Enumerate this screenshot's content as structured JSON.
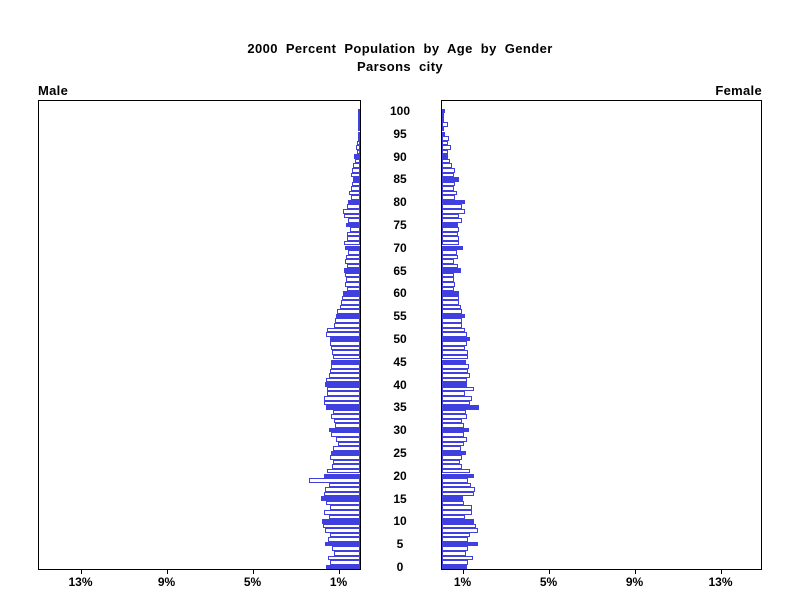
{
  "title": {
    "line1": "2000 Percent Population by Age by Gender",
    "line2": "Parsons city"
  },
  "side_labels": {
    "male": "Male",
    "female": "Female"
  },
  "axis": {
    "age_ticks": [
      0,
      5,
      10,
      15,
      20,
      25,
      30,
      35,
      40,
      45,
      50,
      55,
      60,
      65,
      70,
      75,
      80,
      85,
      90,
      95,
      100
    ],
    "pct_tick_values": [
      1,
      5,
      9,
      13
    ],
    "pct_tick_labels": [
      "1%",
      "5%",
      "9%",
      "13%"
    ]
  },
  "colors": {
    "bar_blue": "#4040E0",
    "bar_hollow_fill": "#FFFFFF",
    "frame": "#000000",
    "text": "#000000",
    "background": "#FFFFFF"
  },
  "chart_data": {
    "type": "bar",
    "subtype": "population_pyramid",
    "title": "2000 Percent Population by Age by Gender",
    "subtitle": "Parsons city",
    "unit": "percent",
    "age_min": 0,
    "age_max": 100,
    "bars_filled_at_multiples_of": 5,
    "x_axis": {
      "tick_values_pct": [
        1,
        5,
        9,
        13
      ],
      "side_max_pct": 15,
      "left_series": "Male",
      "right_series": "Female"
    },
    "series": [
      {
        "name": "Male",
        "side": "left",
        "ages_0_to_100_pct": [
          1.57,
          1.38,
          1.51,
          1.23,
          1.3,
          1.63,
          1.51,
          1.38,
          1.61,
          1.72,
          1.77,
          1.46,
          1.69,
          1.41,
          1.6,
          1.8,
          1.69,
          1.61,
          1.46,
          2.38,
          1.69,
          1.54,
          1.3,
          1.26,
          1.41,
          1.34,
          1.26,
          1.04,
          1.12,
          1.35,
          1.46,
          1.15,
          1.23,
          1.34,
          1.24,
          1.57,
          1.69,
          1.66,
          1.54,
          1.54,
          1.64,
          1.57,
          1.46,
          1.38,
          1.34,
          1.34,
          1.26,
          1.3,
          1.35,
          1.38,
          1.41,
          1.58,
          1.54,
          1.2,
          1.18,
          1.11,
          1.09,
          0.91,
          0.89,
          0.84,
          0.8,
          0.61,
          0.69,
          0.66,
          0.72,
          0.74,
          0.61,
          0.72,
          0.65,
          0.58,
          0.72,
          0.74,
          0.61,
          0.61,
          0.46,
          0.65,
          0.58,
          0.75,
          0.8,
          0.61,
          0.57,
          0.43,
          0.51,
          0.43,
          0.38,
          0.31,
          0.41,
          0.38,
          0.31,
          0.25,
          0.28,
          0.15,
          0.2,
          0.12,
          0.08,
          0.06,
          0.08,
          0.05,
          0.02,
          0.02,
          0.04
        ]
      },
      {
        "name": "Female",
        "side": "right",
        "ages_0_to_100_pct": [
          1.15,
          1.23,
          1.46,
          1.12,
          1.2,
          1.66,
          1.23,
          1.28,
          1.66,
          1.57,
          1.49,
          1.07,
          1.38,
          1.41,
          1.0,
          0.97,
          1.51,
          1.54,
          1.35,
          1.23,
          1.49,
          1.3,
          0.92,
          0.84,
          0.95,
          1.12,
          0.89,
          1.03,
          1.18,
          1.0,
          1.26,
          1.03,
          0.95,
          1.18,
          1.11,
          1.72,
          1.3,
          1.41,
          1.05,
          1.51,
          1.15,
          1.15,
          1.28,
          1.2,
          1.26,
          1.11,
          1.23,
          1.23,
          1.07,
          1.18,
          1.28,
          1.18,
          1.07,
          0.95,
          0.95,
          1.05,
          0.95,
          0.89,
          0.8,
          0.77,
          0.8,
          0.58,
          0.61,
          0.54,
          0.58,
          0.89,
          0.74,
          0.54,
          0.74,
          0.69,
          0.97,
          0.77,
          0.8,
          0.74,
          0.8,
          0.74,
          0.92,
          0.8,
          1.07,
          0.95,
          1.05,
          0.61,
          0.69,
          0.58,
          0.61,
          0.77,
          0.58,
          0.61,
          0.46,
          0.38,
          0.3,
          0.28,
          0.4,
          0.3,
          0.33,
          0.15,
          0.1,
          0.28,
          0.05,
          0.08,
          0.12
        ]
      }
    ]
  }
}
